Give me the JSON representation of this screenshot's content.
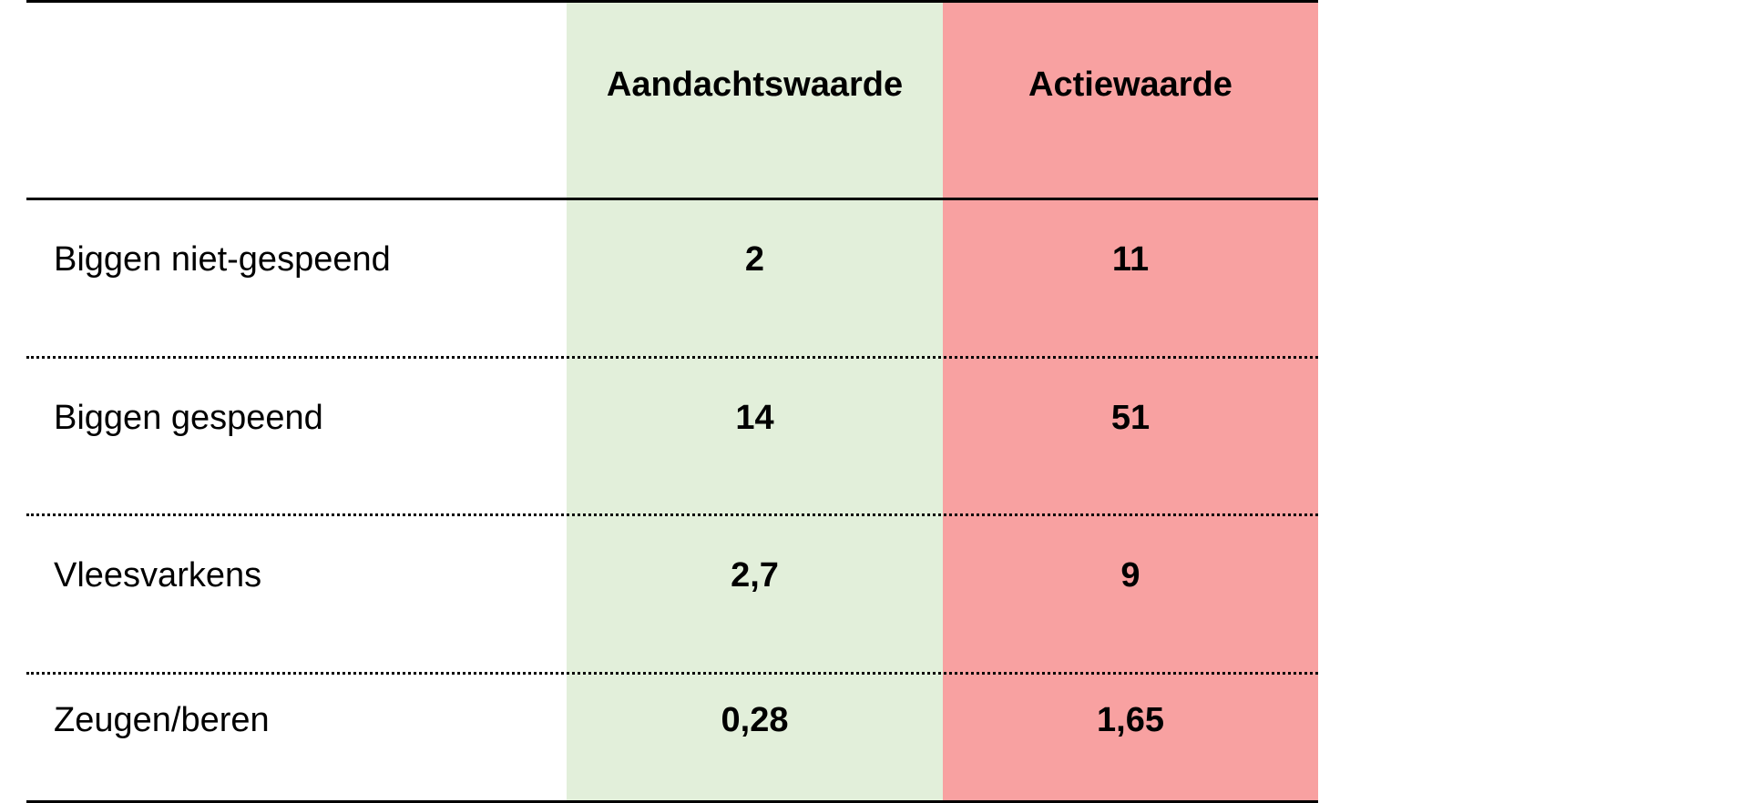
{
  "colors": {
    "attention_bg": "#e2efda",
    "action_bg": "#f8a1a1",
    "line": "#000000"
  },
  "table": {
    "headers": [
      "",
      "Aandachtswaarde",
      "Actiewaarde"
    ],
    "rows": [
      {
        "label": "Biggen niet-gespeend",
        "attention": "2",
        "action": "11"
      },
      {
        "label": "Biggen gespeend",
        "attention": "14",
        "action": "51"
      },
      {
        "label": "Vleesvarkens",
        "attention": "2,7",
        "action": "9"
      },
      {
        "label": "Zeugen/beren",
        "attention": "0,28",
        "action": "1,65"
      }
    ]
  }
}
